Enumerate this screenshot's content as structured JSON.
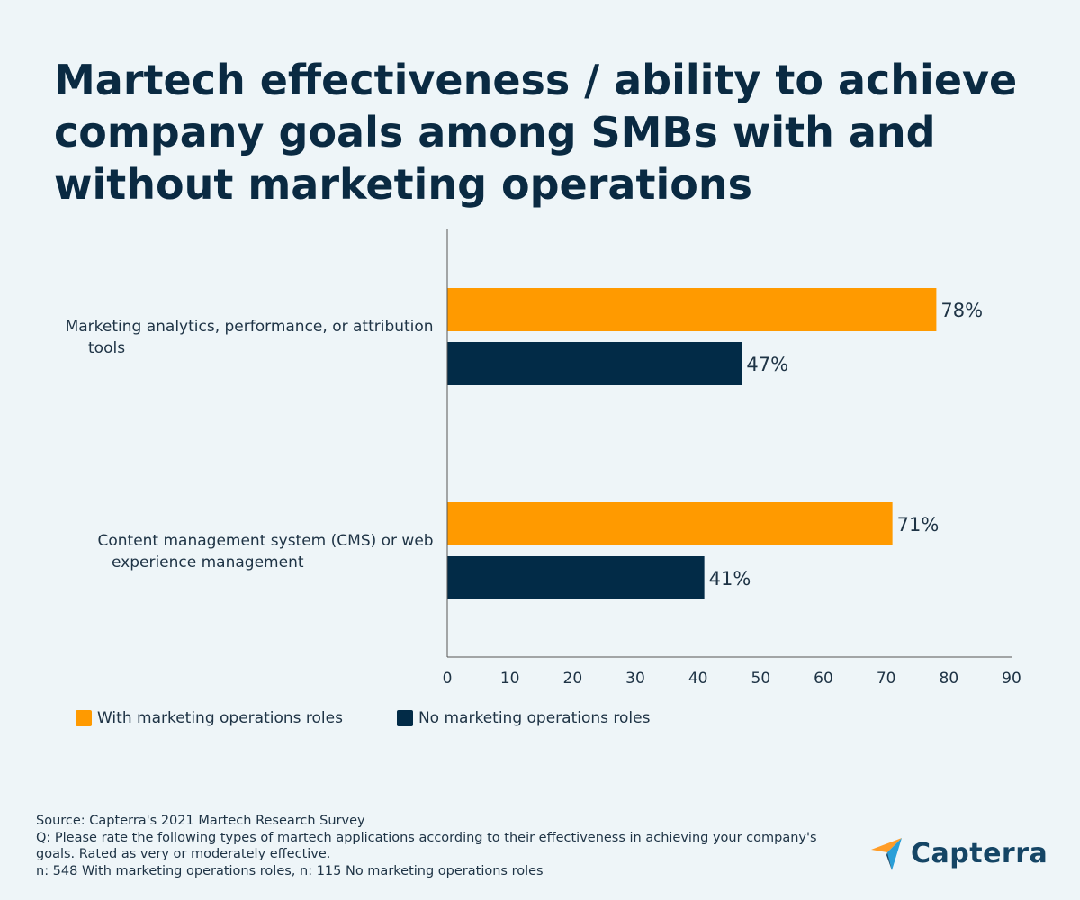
{
  "title_lines": [
    "Martech effectiveness / ability to achieve",
    "company goals among SMBs with and",
    "without marketing operations"
  ],
  "colors": {
    "with_roles": "#ff9a00",
    "no_roles": "#022b47",
    "background": "#eef5f8",
    "axis": "#555555",
    "logo_orange": "#ff9d28",
    "logo_blue": "#2a9fd8",
    "logo_dark": "#154565"
  },
  "chart_data": {
    "type": "bar",
    "orientation": "horizontal",
    "categories": [
      "Marketing analytics, performance, or attribution tools",
      "Content management system (CMS) or web experience management"
    ],
    "series": [
      {
        "name": "With marketing operations roles",
        "values": [
          78,
          71
        ]
      },
      {
        "name": "No marketing operations roles",
        "values": [
          47,
          41
        ]
      }
    ],
    "data_labels": [
      [
        "78%",
        "71%"
      ],
      [
        "47%",
        "41%"
      ]
    ],
    "xlim": [
      0,
      90
    ],
    "xticks": [
      0,
      10,
      20,
      30,
      40,
      50,
      60,
      70,
      80,
      90
    ],
    "grid": false,
    "legend_position": "bottom-left"
  },
  "category_label_lines": [
    [
      "Marketing analytics, performance, or attribution",
      "tools"
    ],
    [
      "Content management system (CMS) or web",
      "experience management"
    ]
  ],
  "legend": {
    "with_roles": "With marketing operations roles",
    "no_roles": "No marketing operations roles"
  },
  "footer": {
    "source": "Source: Capterra's 2021 Martech Research Survey",
    "question_line1": "Q: Please rate the following types of martech applications according to their effectiveness in achieving your company's",
    "question_line2": "goals. Rated as very or moderately effective.",
    "sample": "n: 548 With marketing operations roles, n: 115 No marketing operations roles"
  },
  "logo": {
    "text": "Capterra",
    "icon": "capterra-arrow-icon"
  }
}
